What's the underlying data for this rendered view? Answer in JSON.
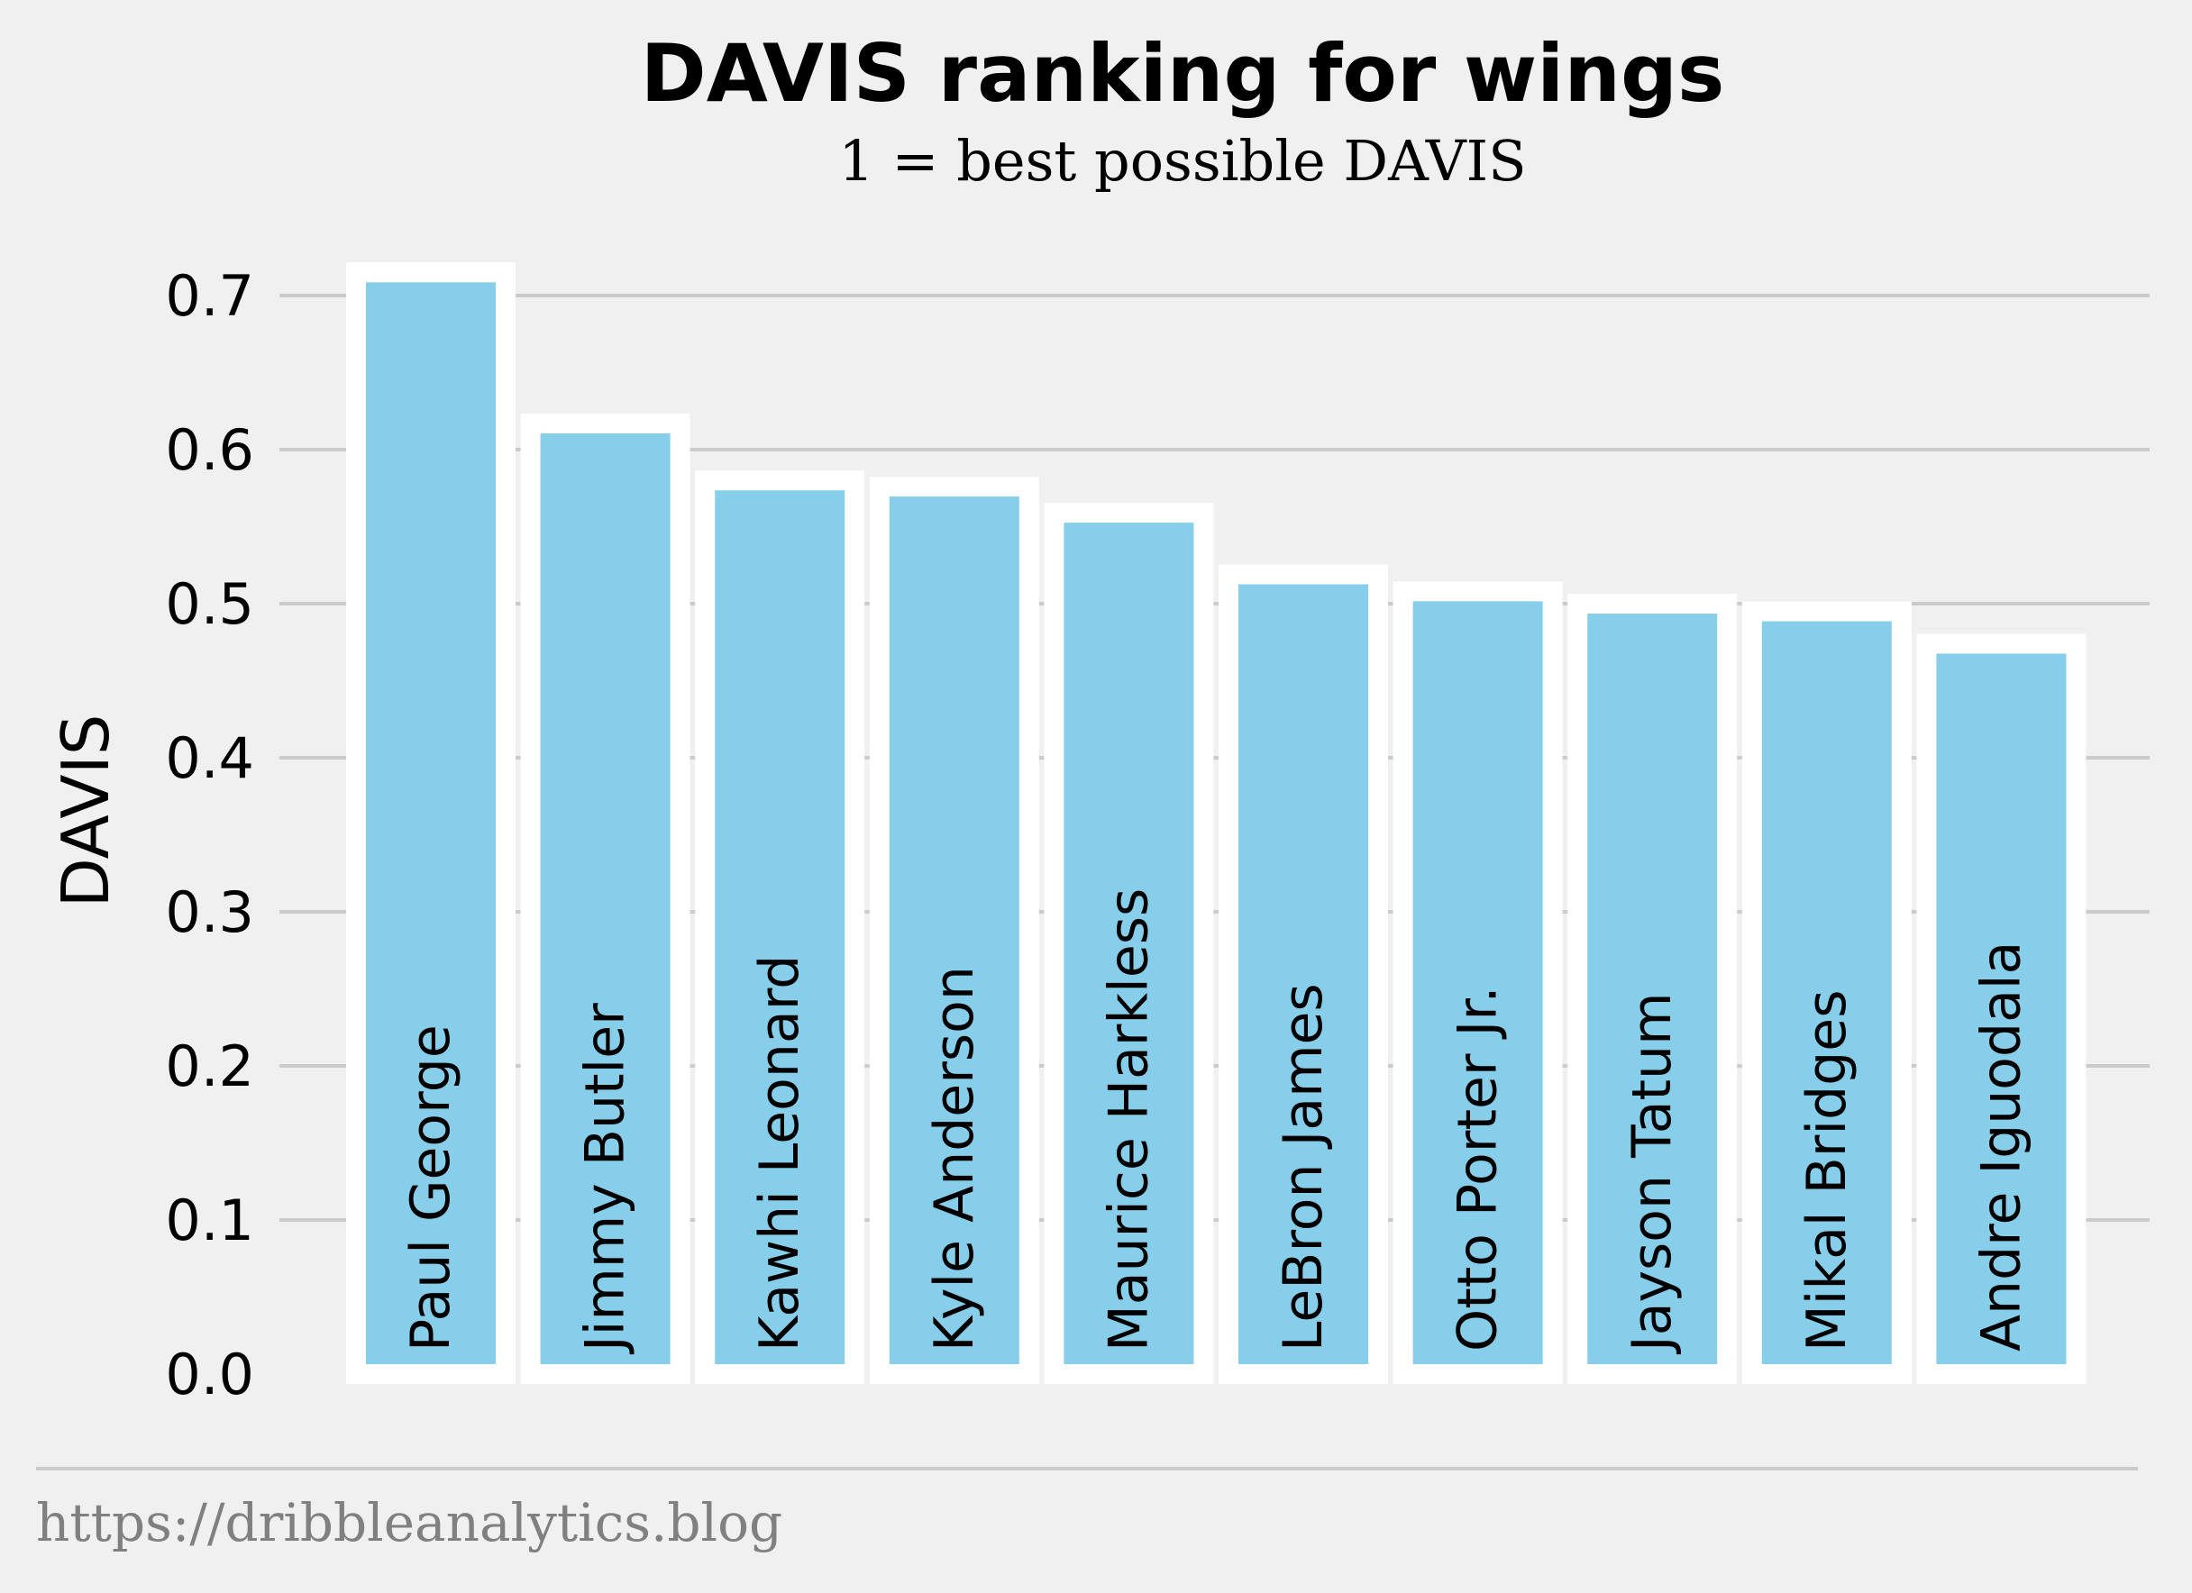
{
  "chart_data": {
    "type": "bar",
    "title": "DAVIS ranking for wings",
    "subtitle": "1 = best possible DAVIS",
    "xlabel": "",
    "ylabel": "DAVIS",
    "ylim": [
      0,
      0.725
    ],
    "yticks": [
      "0.0",
      "0.1",
      "0.2",
      "0.3",
      "0.4",
      "0.5",
      "0.6",
      "0.7"
    ],
    "grid": true,
    "legend": "none",
    "bar_color": "#87ceeb",
    "bar_edge_color": "#ffffff",
    "categories": [
      "Paul George",
      "Jimmy Butler",
      "Kawhi Leonard",
      "Kyle Anderson",
      "Maurice Harkless",
      "LeBron James",
      "Otto Porter Jr.",
      "Jayson Tatum",
      "Mikal Bridges",
      "Andre Iguodala"
    ],
    "values": [
      0.715,
      0.617,
      0.58,
      0.576,
      0.559,
      0.519,
      0.508,
      0.5,
      0.495,
      0.474
    ]
  },
  "footer": {
    "source": "https://dribbleanalytics.blog"
  },
  "colors": {
    "background": "#f0f0f0",
    "grid": "#cbcbcb",
    "footer_text": "#808080"
  }
}
